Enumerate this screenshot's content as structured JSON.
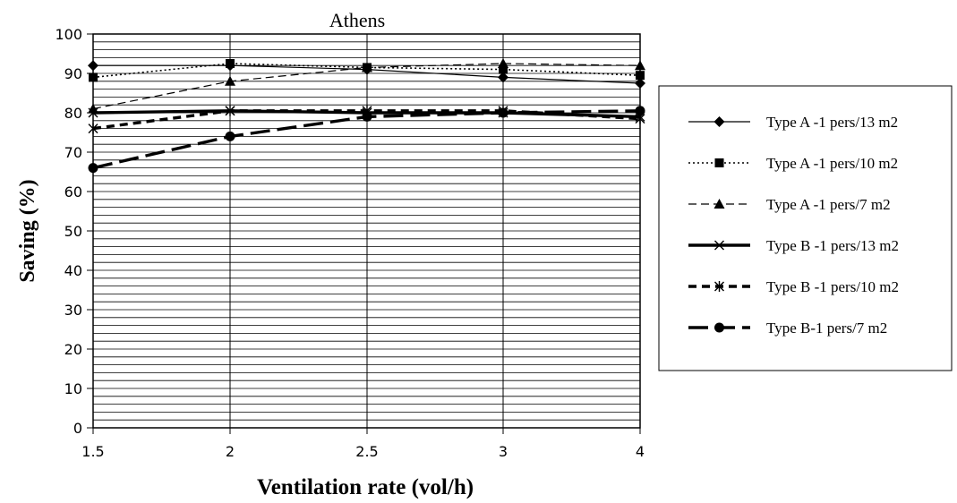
{
  "chart_data": {
    "type": "line",
    "title": "Athens",
    "xlabel": "Ventilation rate (vol/h)",
    "ylabel": "Saving (%)",
    "x": [
      1.5,
      2,
      2.5,
      3,
      4
    ],
    "x_tick_labels": [
      "1.5",
      "2",
      "2.5",
      "3",
      "4"
    ],
    "ylim": [
      0,
      100
    ],
    "y_major_ticks": [
      0,
      10,
      20,
      30,
      40,
      50,
      60,
      70,
      80,
      90,
      100
    ],
    "y_minor_grid_step": 2,
    "grid": true,
    "legend_position": "right",
    "series": [
      {
        "name": "Type A -1 pers/13 m2",
        "values": [
          92,
          92,
          91,
          89,
          87.5
        ],
        "color": "#000000",
        "line": "solid-thin",
        "marker": "diamond"
      },
      {
        "name": "Type A -1 pers/10 m2",
        "values": [
          89,
          92.5,
          91.5,
          91,
          89.5
        ],
        "color": "#000000",
        "line": "dotted",
        "marker": "square"
      },
      {
        "name": "Type A -1 pers/7 m2",
        "values": [
          81,
          88,
          91.5,
          92.5,
          92
        ],
        "color": "#000000",
        "line": "dashed",
        "marker": "triangle"
      },
      {
        "name": "Type B -1 pers/13 m2",
        "values": [
          80,
          80.5,
          80,
          80,
          79
        ],
        "color": "#000000",
        "line": "solid-thick",
        "marker": "x"
      },
      {
        "name": "Type B -1 pers/10 m2",
        "values": [
          76,
          80.5,
          80.5,
          80.5,
          78.5
        ],
        "color": "#000000",
        "line": "dashed-thick",
        "marker": "asterisk"
      },
      {
        "name": "Type B-1 pers/7 m2",
        "values": [
          66,
          74,
          79,
          80,
          80.5
        ],
        "color": "#000000",
        "line": "long-dash-thick",
        "marker": "circle"
      }
    ]
  }
}
